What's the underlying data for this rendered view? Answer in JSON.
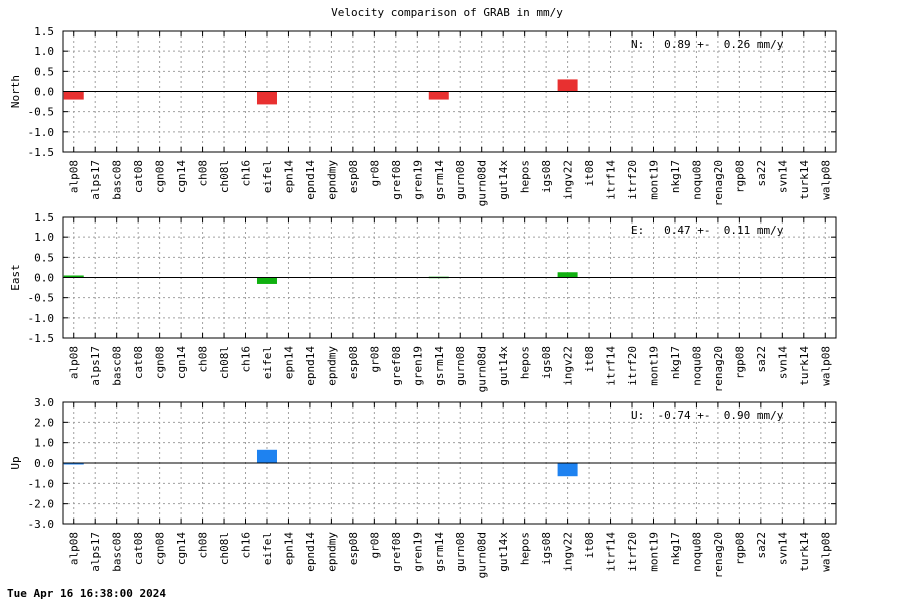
{
  "title": "Velocity comparison of GRAB in mm/y",
  "timestamp": "Tue Apr 16 16:38:00 2024",
  "chart_data": [
    {
      "type": "bar",
      "ylabel": "North",
      "ylim": [
        -1.5,
        1.5
      ],
      "yticks": [
        "1.5",
        "1.0",
        "0.5",
        "0.0",
        "-0.5",
        "-1.0",
        "-1.5"
      ],
      "grid": true,
      "annotation": "N:   0.89 +-  0.26 mm/y",
      "color": "#e83030",
      "categories": [
        "alp08",
        "alps17",
        "basc08",
        "cat08",
        "cgn08",
        "cgn14",
        "ch08",
        "ch08l",
        "ch16",
        "eifel",
        "epn14",
        "epnd14",
        "epndmy",
        "esp08",
        "gr08",
        "gref08",
        "gren19",
        "gsrm14",
        "gurn08",
        "gurn08d",
        "gut14x",
        "hepos",
        "igs08",
        "ingv22",
        "it08",
        "itrf14",
        "itrf20",
        "mont19",
        "nkg17",
        "noqu08",
        "renag20",
        "rgp08",
        "sa22",
        "svn14",
        "turk14",
        "walp08"
      ],
      "values": [
        -0.2,
        0,
        0,
        0,
        0,
        0,
        0,
        0,
        0,
        -0.32,
        0,
        0,
        0,
        0,
        0,
        0,
        0,
        -0.2,
        0,
        0,
        0,
        0,
        0,
        0.3,
        0,
        0,
        0,
        0,
        0,
        0,
        0,
        0,
        0,
        0,
        0,
        0
      ]
    },
    {
      "type": "bar",
      "ylabel": "East",
      "ylim": [
        -1.5,
        1.5
      ],
      "yticks": [
        "1.5",
        "1.0",
        "0.5",
        "0.0",
        "-0.5",
        "-1.0",
        "-1.5"
      ],
      "grid": true,
      "annotation": "E:   0.47 +-  0.11 mm/y",
      "color": "#10b010",
      "categories": [
        "alp08",
        "alps17",
        "basc08",
        "cat08",
        "cgn08",
        "cgn14",
        "ch08",
        "ch08l",
        "ch16",
        "eifel",
        "epn14",
        "epnd14",
        "epndmy",
        "esp08",
        "gr08",
        "gref08",
        "gren19",
        "gsrm14",
        "gurn08",
        "gurn08d",
        "gut14x",
        "hepos",
        "igs08",
        "ingv22",
        "it08",
        "itrf14",
        "itrf20",
        "mont19",
        "nkg17",
        "noqu08",
        "renag20",
        "rgp08",
        "sa22",
        "svn14",
        "turk14",
        "walp08"
      ],
      "values": [
        0.05,
        0,
        0,
        0,
        0,
        0,
        0,
        0,
        0,
        -0.16,
        0,
        0,
        0,
        0,
        0,
        0,
        0,
        0.02,
        0,
        0,
        0,
        0,
        0,
        0.13,
        0,
        0,
        0,
        0,
        0,
        0,
        0,
        0,
        0,
        0,
        0,
        0
      ]
    },
    {
      "type": "bar",
      "ylabel": "Up",
      "ylim": [
        -3.0,
        3.0
      ],
      "yticks": [
        "3.0",
        "2.0",
        "1.0",
        "0.0",
        "-1.0",
        "-2.0",
        "-3.0"
      ],
      "grid": true,
      "annotation": "U:  -0.74 +-  0.90 mm/y",
      "color": "#1e82f0",
      "categories": [
        "alp08",
        "alps17",
        "basc08",
        "cat08",
        "cgn08",
        "cgn14",
        "ch08",
        "ch08l",
        "ch16",
        "eifel",
        "epn14",
        "epnd14",
        "epndmy",
        "esp08",
        "gr08",
        "gref08",
        "gren19",
        "gsrm14",
        "gurn08",
        "gurn08d",
        "gut14x",
        "hepos",
        "igs08",
        "ingv22",
        "it08",
        "itrf14",
        "itrf20",
        "mont19",
        "nkg17",
        "noqu08",
        "renag20",
        "rgp08",
        "sa22",
        "svn14",
        "turk14",
        "walp08"
      ],
      "values": [
        -0.06,
        0,
        0,
        0,
        0,
        0,
        0,
        0,
        0,
        0.65,
        0,
        0,
        0,
        0,
        0,
        0,
        0,
        0,
        0,
        0,
        0,
        0,
        0,
        -0.65,
        0,
        0,
        0,
        0,
        0,
        0,
        0,
        0,
        0,
        0,
        0,
        0
      ]
    }
  ]
}
